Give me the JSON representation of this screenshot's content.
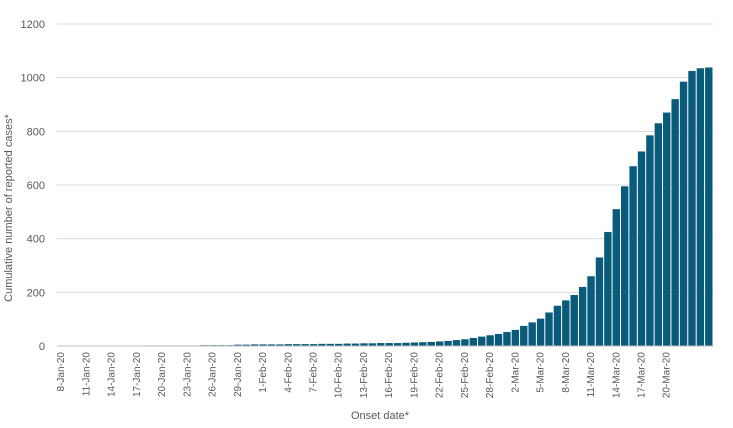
{
  "chart_data": {
    "type": "bar",
    "title": "",
    "xlabel": "Onset date*",
    "ylabel": "Cumulative number of reported  cases*",
    "ylim": [
      0,
      1200
    ],
    "yticks": [
      0,
      200,
      400,
      600,
      800,
      1000,
      1200
    ],
    "grid": true,
    "legend": "none",
    "bar_color": "#0a5a7c",
    "x_start": "8-Jan-20",
    "x_end": "22-Mar-20",
    "x_tick_labels": [
      "8-Jan-20",
      "11-Jan-20",
      "14-Jan-20",
      "17-Jan-20",
      "20-Jan-20",
      "23-Jan-20",
      "26-Jan-20",
      "29-Jan-20",
      "1-Feb-20",
      "4-Feb-20",
      "7-Feb-20",
      "10-Feb-20",
      "13-Feb-20",
      "16-Feb-20",
      "19-Feb-20",
      "22-Feb-20",
      "25-Feb-20",
      "28-Feb-20",
      "2-Mar-20",
      "5-Mar-20",
      "8-Mar-20",
      "11-Mar-20",
      "14-Mar-20",
      "17-Mar-20",
      "20-Mar-20"
    ],
    "values": [
      0,
      0,
      0,
      0,
      0,
      0,
      1,
      1,
      1,
      1,
      2,
      2,
      2,
      2,
      2,
      2,
      2,
      3,
      3,
      3,
      3,
      5,
      5,
      6,
      6,
      6,
      6,
      7,
      7,
      7,
      7,
      8,
      8,
      8,
      9,
      9,
      10,
      10,
      11,
      11,
      11,
      12,
      13,
      14,
      15,
      17,
      19,
      22,
      25,
      30,
      35,
      40,
      45,
      52,
      60,
      75,
      88,
      102,
      125,
      150,
      170,
      190,
      220,
      260,
      330,
      425,
      510,
      595,
      670,
      725,
      785,
      830,
      870,
      920,
      985,
      1025,
      1035,
      1038
    ]
  }
}
